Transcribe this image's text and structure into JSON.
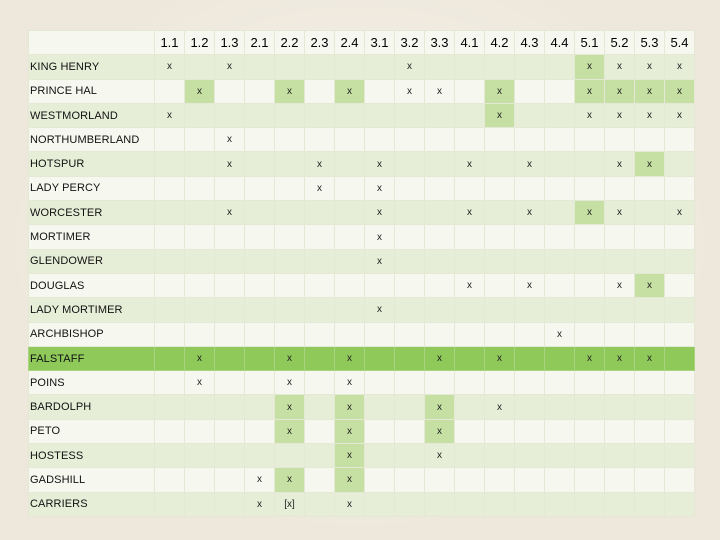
{
  "columns": [
    "1.1",
    "1.2",
    "1.3",
    "2.1",
    "2.2",
    "2.3",
    "2.4",
    "3.1",
    "3.2",
    "3.3",
    "4.1",
    "4.2",
    "4.3",
    "4.4",
    "5.1",
    "5.2",
    "5.3",
    "5.4"
  ],
  "rows": [
    {
      "name": "KING HENRY",
      "marks": [
        "x",
        "",
        "x",
        "",
        "",
        "",
        "",
        "",
        "x",
        "",
        "",
        "",
        "",
        "",
        "x",
        "x",
        "x",
        "x"
      ],
      "hl": [
        false,
        false,
        false,
        false,
        false,
        false,
        false,
        false,
        false,
        false,
        false,
        false,
        false,
        false,
        true,
        false,
        false,
        false
      ]
    },
    {
      "name": "PRINCE HAL",
      "marks": [
        "",
        "x",
        "",
        "",
        "x",
        "",
        "x",
        "",
        "x",
        "x",
        "",
        "x",
        "",
        "",
        "x",
        "x",
        "x",
        "x"
      ],
      "hl": [
        false,
        true,
        false,
        false,
        true,
        false,
        true,
        false,
        false,
        false,
        false,
        true,
        false,
        false,
        true,
        true,
        true,
        true
      ]
    },
    {
      "name": "WESTMORLAND",
      "marks": [
        "x",
        "",
        "",
        "",
        "",
        "",
        "",
        "",
        "",
        "",
        "",
        "x",
        "",
        "",
        "x",
        "x",
        "x",
        "x"
      ],
      "hl": [
        false,
        false,
        false,
        false,
        false,
        false,
        false,
        false,
        false,
        false,
        false,
        true,
        false,
        false,
        false,
        false,
        false,
        false
      ]
    },
    {
      "name": "NORTHUMBERLAND",
      "marks": [
        "",
        "",
        "x",
        "",
        "",
        "",
        "",
        "",
        "",
        "",
        "",
        "",
        "",
        "",
        "",
        "",
        "",
        ""
      ],
      "hl": [
        false,
        false,
        false,
        false,
        false,
        false,
        false,
        false,
        false,
        false,
        false,
        false,
        false,
        false,
        false,
        false,
        false,
        false
      ]
    },
    {
      "name": "HOTSPUR",
      "marks": [
        "",
        "",
        "x",
        "",
        "",
        "x",
        "",
        "x",
        "",
        "",
        "x",
        "",
        "x",
        "",
        "",
        "x",
        "x",
        ""
      ],
      "hl": [
        false,
        false,
        false,
        false,
        false,
        false,
        false,
        false,
        false,
        false,
        false,
        false,
        false,
        false,
        false,
        false,
        true,
        false
      ]
    },
    {
      "name": "LADY PERCY",
      "marks": [
        "",
        "",
        "",
        "",
        "",
        "x",
        "",
        "x",
        "",
        "",
        "",
        "",
        "",
        "",
        "",
        "",
        "",
        ""
      ],
      "hl": [
        false,
        false,
        false,
        false,
        false,
        false,
        false,
        false,
        false,
        false,
        false,
        false,
        false,
        false,
        false,
        false,
        false,
        false
      ]
    },
    {
      "name": "WORCESTER",
      "marks": [
        "",
        "",
        "x",
        "",
        "",
        "",
        "",
        "x",
        "",
        "",
        "x",
        "",
        "x",
        "",
        "x",
        "x",
        "",
        "x"
      ],
      "hl": [
        false,
        false,
        false,
        false,
        false,
        false,
        false,
        false,
        false,
        false,
        false,
        false,
        false,
        false,
        true,
        false,
        false,
        false
      ]
    },
    {
      "name": "MORTIMER",
      "marks": [
        "",
        "",
        "",
        "",
        "",
        "",
        "",
        "x",
        "",
        "",
        "",
        "",
        "",
        "",
        "",
        "",
        "",
        ""
      ],
      "hl": [
        false,
        false,
        false,
        false,
        false,
        false,
        false,
        false,
        false,
        false,
        false,
        false,
        false,
        false,
        false,
        false,
        false,
        false
      ]
    },
    {
      "name": "GLENDOWER",
      "marks": [
        "",
        "",
        "",
        "",
        "",
        "",
        "",
        "x",
        "",
        "",
        "",
        "",
        "",
        "",
        "",
        "",
        "",
        ""
      ],
      "hl": [
        false,
        false,
        false,
        false,
        false,
        false,
        false,
        false,
        false,
        false,
        false,
        false,
        false,
        false,
        false,
        false,
        false,
        false
      ]
    },
    {
      "name": "DOUGLAS",
      "marks": [
        "",
        "",
        "",
        "",
        "",
        "",
        "",
        "",
        "",
        "",
        "x",
        "",
        "x",
        "",
        "",
        "x",
        "x",
        ""
      ],
      "hl": [
        false,
        false,
        false,
        false,
        false,
        false,
        false,
        false,
        false,
        false,
        false,
        false,
        false,
        false,
        false,
        false,
        true,
        false
      ]
    },
    {
      "name": "LADY MORTIMER",
      "marks": [
        "",
        "",
        "",
        "",
        "",
        "",
        "",
        "x",
        "",
        "",
        "",
        "",
        "",
        "",
        "",
        "",
        "",
        ""
      ],
      "hl": [
        false,
        false,
        false,
        false,
        false,
        false,
        false,
        false,
        false,
        false,
        false,
        false,
        false,
        false,
        false,
        false,
        false,
        false
      ]
    },
    {
      "name": "ARCHBISHOP",
      "marks": [
        "",
        "",
        "",
        "",
        "",
        "",
        "",
        "",
        "",
        "",
        "",
        "",
        "",
        "x",
        "",
        "",
        "",
        ""
      ],
      "hl": [
        false,
        false,
        false,
        false,
        false,
        false,
        false,
        false,
        false,
        false,
        false,
        false,
        false,
        false,
        false,
        false,
        false,
        false
      ]
    },
    {
      "name": "FALSTAFF",
      "band": true,
      "marks": [
        "",
        "x",
        "",
        "",
        "x",
        "",
        "x",
        "",
        "",
        "x",
        "",
        "x",
        "",
        "",
        "x",
        "x",
        "x",
        ""
      ],
      "hl": [
        false,
        false,
        false,
        false,
        false,
        false,
        false,
        false,
        false,
        false,
        false,
        false,
        false,
        false,
        false,
        false,
        false,
        false
      ]
    },
    {
      "name": "POINS",
      "marks": [
        "",
        "x",
        "",
        "",
        "x",
        "",
        "x",
        "",
        "",
        "",
        "",
        "",
        "",
        "",
        "",
        "",
        "",
        ""
      ],
      "hl": [
        false,
        false,
        false,
        false,
        false,
        false,
        false,
        false,
        false,
        false,
        false,
        false,
        false,
        false,
        false,
        false,
        false,
        false
      ]
    },
    {
      "name": "BARDOLPH",
      "marks": [
        "",
        "",
        "",
        "",
        "x",
        "",
        "x",
        "",
        "",
        "x",
        "",
        "x",
        "",
        "",
        "",
        "",
        "",
        ""
      ],
      "hl": [
        false,
        false,
        false,
        false,
        true,
        false,
        true,
        false,
        false,
        true,
        false,
        false,
        false,
        false,
        false,
        false,
        false,
        false
      ]
    },
    {
      "name": "PETO",
      "marks": [
        "",
        "",
        "",
        "",
        "x",
        "",
        "x",
        "",
        "",
        "x",
        "",
        "",
        "",
        "",
        "",
        "",
        "",
        ""
      ],
      "hl": [
        false,
        false,
        false,
        false,
        true,
        false,
        true,
        false,
        false,
        true,
        false,
        false,
        false,
        false,
        false,
        false,
        false,
        false
      ]
    },
    {
      "name": "HOSTESS",
      "marks": [
        "",
        "",
        "",
        "",
        "",
        "",
        "x",
        "",
        "",
        "x",
        "",
        "",
        "",
        "",
        "",
        "",
        "",
        ""
      ],
      "hl": [
        false,
        false,
        false,
        false,
        false,
        false,
        true,
        false,
        false,
        false,
        false,
        false,
        false,
        false,
        false,
        false,
        false,
        false
      ]
    },
    {
      "name": "GADSHILL",
      "marks": [
        "",
        "",
        "",
        "x",
        "x",
        "",
        "x",
        "",
        "",
        "",
        "",
        "",
        "",
        "",
        "",
        "",
        "",
        ""
      ],
      "hl": [
        false,
        false,
        false,
        false,
        true,
        false,
        true,
        false,
        false,
        false,
        false,
        false,
        false,
        false,
        false,
        false,
        false,
        false
      ]
    },
    {
      "name": "CARRIERS",
      "marks": [
        "",
        "",
        "",
        "x",
        "[x]",
        "",
        "x",
        "",
        "",
        "",
        "",
        "",
        "",
        "",
        "",
        "",
        "",
        ""
      ],
      "hl": [
        false,
        false,
        false,
        false,
        false,
        false,
        false,
        false,
        false,
        false,
        false,
        false,
        false,
        false,
        false,
        false,
        false,
        false
      ]
    }
  ]
}
